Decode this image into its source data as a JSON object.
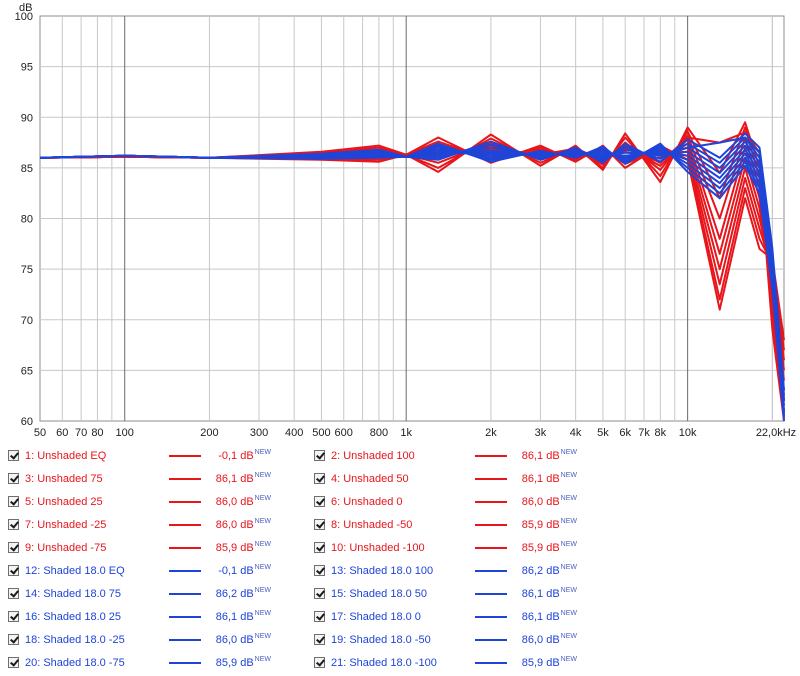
{
  "chart_data": {
    "type": "line",
    "ylabel": "dB",
    "x_unit_label": "22,0kHz",
    "x_scale": "log",
    "xlim": [
      50,
      22000
    ],
    "ylim": [
      60,
      100
    ],
    "y_ticks": [
      60,
      65,
      70,
      75,
      80,
      85,
      90,
      95,
      100
    ],
    "x_ticks": [
      {
        "value": 50,
        "label": "50"
      },
      {
        "value": 60,
        "label": "60"
      },
      {
        "value": 70,
        "label": "70"
      },
      {
        "value": 80,
        "label": "80"
      },
      {
        "value": 100,
        "label": "100"
      },
      {
        "value": 200,
        "label": "200"
      },
      {
        "value": 300,
        "label": "300"
      },
      {
        "value": 400,
        "label": "400"
      },
      {
        "value": 500,
        "label": "500"
      },
      {
        "value": 600,
        "label": "600"
      },
      {
        "value": 800,
        "label": "800"
      },
      {
        "value": 1000,
        "label": "1k"
      },
      {
        "value": 2000,
        "label": "2k"
      },
      {
        "value": 3000,
        "label": "3k"
      },
      {
        "value": 4000,
        "label": "4k"
      },
      {
        "value": 5000,
        "label": "5k"
      },
      {
        "value": 6000,
        "label": "6k"
      },
      {
        "value": 7000,
        "label": "7k"
      },
      {
        "value": 8000,
        "label": "8k"
      },
      {
        "value": 10000,
        "label": "10k"
      }
    ],
    "grid": true,
    "series_colors": {
      "unshaded": "#e8151b",
      "shaded": "#1f44d8"
    },
    "series": [
      {
        "name": "1: Unshaded EQ",
        "value": "-0,1 dB",
        "color": "#e8151b",
        "x": [
          50,
          100,
          200,
          500,
          800,
          1000,
          1300,
          2000,
          3000,
          4000,
          5000,
          6000,
          8000,
          10000,
          13000,
          16000,
          18000,
          20000,
          22000
        ],
        "y": [
          86.0,
          86.1,
          86.0,
          86.2,
          86.4,
          86.2,
          86.5,
          86.8,
          86.3,
          86.9,
          85.8,
          87.2,
          85.5,
          88.0,
          87.5,
          88.5,
          86.5,
          70.0,
          60.5
        ]
      },
      {
        "name": "2: Unshaded 100",
        "value": "86,1 dB",
        "color": "#e8151b",
        "x": [
          50,
          100,
          200,
          500,
          800,
          1000,
          1300,
          2000,
          3000,
          4000,
          5000,
          6000,
          8000,
          10000,
          13000,
          16000,
          18000,
          20000,
          22000
        ],
        "y": [
          86.0,
          86.1,
          86.0,
          85.8,
          85.6,
          86.3,
          84.6,
          88.3,
          85.2,
          87.2,
          84.8,
          88.4,
          83.6,
          89.0,
          84.5,
          89.5,
          85.0,
          69.0,
          60.0
        ]
      },
      {
        "name": "3: Unshaded 75",
        "value": "86,1 dB",
        "color": "#e8151b",
        "x": [
          50,
          100,
          200,
          500,
          800,
          1000,
          1300,
          2000,
          3000,
          4000,
          5000,
          6000,
          8000,
          10000,
          13000,
          16000,
          18000,
          20000,
          22000
        ],
        "y": [
          86.0,
          86.1,
          86.0,
          85.9,
          85.8,
          86.3,
          85.0,
          87.9,
          85.5,
          87.0,
          85.0,
          88.0,
          84.2,
          88.6,
          82.0,
          89.0,
          84.0,
          70.5,
          61.0
        ]
      },
      {
        "name": "4: Unshaded 50",
        "value": "86,1 dB",
        "color": "#e8151b",
        "x": [
          50,
          100,
          200,
          500,
          800,
          1000,
          1300,
          2000,
          3000,
          4000,
          5000,
          6000,
          8000,
          10000,
          13000,
          16000,
          18000,
          20000,
          22000
        ],
        "y": [
          86.0,
          86.1,
          86.0,
          86.0,
          86.0,
          86.3,
          85.5,
          87.5,
          85.8,
          86.8,
          85.3,
          87.5,
          84.8,
          88.2,
          80.0,
          88.0,
          83.0,
          71.5,
          62.0
        ]
      },
      {
        "name": "5: Unshaded 25",
        "value": "86,0 dB",
        "color": "#e8151b",
        "x": [
          50,
          100,
          200,
          500,
          800,
          1000,
          1300,
          2000,
          3000,
          4000,
          5000,
          6000,
          8000,
          10000,
          13000,
          16000,
          18000,
          20000,
          22000
        ],
        "y": [
          86.0,
          86.1,
          86.0,
          86.1,
          86.2,
          86.3,
          86.0,
          87.2,
          86.0,
          86.6,
          85.6,
          87.0,
          85.2,
          87.8,
          78.0,
          87.0,
          82.0,
          72.5,
          63.0
        ]
      },
      {
        "name": "6: Unshaded 0",
        "value": "86,0 dB",
        "color": "#e8151b",
        "x": [
          50,
          100,
          200,
          500,
          800,
          1000,
          1300,
          2000,
          3000,
          4000,
          5000,
          6000,
          8000,
          10000,
          13000,
          16000,
          18000,
          20000,
          22000
        ],
        "y": [
          86.0,
          86.1,
          86.0,
          86.2,
          86.4,
          86.3,
          86.4,
          86.8,
          86.2,
          86.4,
          86.0,
          86.6,
          85.6,
          87.4,
          76.5,
          86.0,
          81.0,
          73.5,
          64.0
        ]
      },
      {
        "name": "7: Unshaded -25",
        "value": "86,0 dB",
        "color": "#e8151b",
        "x": [
          50,
          100,
          200,
          500,
          800,
          1000,
          1300,
          2000,
          3000,
          4000,
          5000,
          6000,
          8000,
          10000,
          13000,
          16000,
          18000,
          20000,
          22000
        ],
        "y": [
          86.0,
          86.1,
          86.0,
          86.3,
          86.6,
          86.3,
          86.8,
          86.5,
          86.5,
          86.2,
          86.3,
          86.2,
          86.0,
          87.0,
          75.0,
          85.0,
          80.0,
          74.5,
          65.0
        ]
      },
      {
        "name": "8: Unshaded -50",
        "value": "85,9 dB",
        "color": "#e8151b",
        "x": [
          50,
          100,
          200,
          500,
          800,
          1000,
          1300,
          2000,
          3000,
          4000,
          5000,
          6000,
          8000,
          10000,
          13000,
          16000,
          18000,
          20000,
          22000
        ],
        "y": [
          86.0,
          86.1,
          86.0,
          86.4,
          86.8,
          86.3,
          87.2,
          86.2,
          86.8,
          86.0,
          86.6,
          85.8,
          86.4,
          86.6,
          73.5,
          84.0,
          79.0,
          75.0,
          66.0
        ]
      },
      {
        "name": "9: Unshaded -75",
        "value": "85,9 dB",
        "color": "#e8151b",
        "x": [
          50,
          100,
          200,
          500,
          800,
          1000,
          1300,
          2000,
          3000,
          4000,
          5000,
          6000,
          8000,
          10000,
          13000,
          16000,
          18000,
          20000,
          22000
        ],
        "y": [
          86.0,
          86.1,
          86.0,
          86.5,
          87.0,
          86.3,
          87.6,
          85.8,
          87.0,
          85.8,
          86.9,
          85.4,
          86.8,
          86.2,
          72.0,
          83.0,
          78.0,
          75.5,
          67.0
        ]
      },
      {
        "name": "10: Unshaded -100",
        "value": "85,9 dB",
        "color": "#e8151b",
        "x": [
          50,
          100,
          200,
          500,
          800,
          1000,
          1300,
          2000,
          3000,
          4000,
          5000,
          6000,
          8000,
          10000,
          13000,
          16000,
          18000,
          20000,
          22000
        ],
        "y": [
          86.0,
          86.1,
          86.0,
          86.6,
          87.2,
          86.3,
          88.0,
          85.5,
          87.2,
          85.6,
          87.2,
          85.0,
          87.2,
          85.8,
          71.0,
          82.0,
          77.0,
          76.0,
          68.0
        ]
      },
      {
        "name": "12: Shaded 18.0 EQ",
        "value": "-0,1 dB",
        "color": "#1f44d8",
        "x": [
          50,
          100,
          200,
          500,
          800,
          1000,
          1300,
          2000,
          3000,
          4000,
          5000,
          6000,
          8000,
          10000,
          13000,
          16000,
          18000,
          20000,
          22000
        ],
        "y": [
          86.0,
          86.2,
          86.0,
          86.1,
          86.3,
          86.1,
          86.4,
          86.5,
          86.2,
          86.6,
          86.0,
          86.8,
          86.2,
          87.0,
          87.5,
          88.0,
          86.5,
          76.0,
          62.0
        ]
      },
      {
        "name": "13: Shaded 18.0 100",
        "value": "86,2 dB",
        "color": "#1f44d8",
        "x": [
          50,
          100,
          200,
          500,
          800,
          1000,
          1300,
          2000,
          3000,
          4000,
          5000,
          6000,
          8000,
          10000,
          13000,
          16000,
          18000,
          20000,
          22000
        ],
        "y": [
          86.0,
          86.2,
          86.0,
          85.9,
          86.0,
          86.1,
          85.8,
          87.6,
          85.8,
          87.0,
          85.5,
          87.4,
          85.6,
          87.8,
          86.0,
          88.4,
          87.0,
          77.0,
          63.0
        ]
      },
      {
        "name": "14: Shaded 18.0 75",
        "value": "86,2 dB",
        "color": "#1f44d8",
        "x": [
          50,
          100,
          200,
          500,
          800,
          1000,
          1300,
          2000,
          3000,
          4000,
          5000,
          6000,
          8000,
          10000,
          13000,
          16000,
          18000,
          20000,
          22000
        ],
        "y": [
          86.0,
          86.2,
          86.0,
          86.0,
          86.1,
          86.1,
          86.0,
          87.3,
          86.0,
          86.8,
          85.7,
          87.1,
          85.9,
          87.4,
          85.5,
          88.0,
          86.0,
          76.5,
          62.5
        ]
      },
      {
        "name": "15: Shaded 18.0 50",
        "value": "86,1 dB",
        "color": "#1f44d8",
        "x": [
          50,
          100,
          200,
          500,
          800,
          1000,
          1300,
          2000,
          3000,
          4000,
          5000,
          6000,
          8000,
          10000,
          13000,
          16000,
          18000,
          20000,
          22000
        ],
        "y": [
          86.0,
          86.2,
          86.0,
          86.1,
          86.2,
          86.1,
          86.2,
          87.0,
          86.1,
          86.6,
          85.9,
          86.8,
          86.2,
          87.0,
          85.0,
          87.6,
          85.5,
          76.0,
          62.0
        ]
      },
      {
        "name": "16: Shaded 18.0 25",
        "value": "86,1 dB",
        "color": "#1f44d8",
        "x": [
          50,
          100,
          200,
          500,
          800,
          1000,
          1300,
          2000,
          3000,
          4000,
          5000,
          6000,
          8000,
          10000,
          13000,
          16000,
          18000,
          20000,
          22000
        ],
        "y": [
          86.0,
          86.2,
          86.0,
          86.1,
          86.3,
          86.1,
          86.4,
          86.7,
          86.2,
          86.5,
          86.1,
          86.5,
          86.4,
          86.6,
          84.5,
          87.2,
          85.0,
          75.5,
          61.5
        ]
      },
      {
        "name": "17: Shaded 18.0 0",
        "value": "86,1 dB",
        "color": "#1f44d8",
        "x": [
          50,
          100,
          200,
          500,
          800,
          1000,
          1300,
          2000,
          3000,
          4000,
          5000,
          6000,
          8000,
          10000,
          13000,
          16000,
          18000,
          20000,
          22000
        ],
        "y": [
          86.0,
          86.2,
          86.0,
          86.2,
          86.4,
          86.1,
          86.6,
          86.4,
          86.3,
          86.4,
          86.3,
          86.2,
          86.6,
          86.2,
          84.0,
          86.8,
          84.5,
          75.0,
          61.0
        ]
      },
      {
        "name": "18: Shaded 18.0 -25",
        "value": "86,0 dB",
        "color": "#1f44d8",
        "x": [
          50,
          100,
          200,
          500,
          800,
          1000,
          1300,
          2000,
          3000,
          4000,
          5000,
          6000,
          8000,
          10000,
          13000,
          16000,
          18000,
          20000,
          22000
        ],
        "y": [
          86.0,
          86.2,
          86.0,
          86.2,
          86.5,
          86.1,
          86.8,
          86.2,
          86.4,
          86.3,
          86.5,
          86.0,
          86.8,
          85.8,
          83.5,
          86.4,
          84.0,
          74.5,
          60.8
        ]
      },
      {
        "name": "19: Shaded 18.0 -50",
        "value": "86,0 dB",
        "color": "#1f44d8",
        "x": [
          50,
          100,
          200,
          500,
          800,
          1000,
          1300,
          2000,
          3000,
          4000,
          5000,
          6000,
          8000,
          10000,
          13000,
          16000,
          18000,
          20000,
          22000
        ],
        "y": [
          86.0,
          86.2,
          86.0,
          86.3,
          86.6,
          86.1,
          87.0,
          86.0,
          86.5,
          86.2,
          86.7,
          85.8,
          87.0,
          85.4,
          83.0,
          86.0,
          83.5,
          74.0,
          60.5
        ]
      },
      {
        "name": "20: Shaded 18.0 -75",
        "value": "85,9 dB",
        "color": "#1f44d8",
        "x": [
          50,
          100,
          200,
          500,
          800,
          1000,
          1300,
          2000,
          3000,
          4000,
          5000,
          6000,
          8000,
          10000,
          13000,
          16000,
          18000,
          20000,
          22000
        ],
        "y": [
          86.0,
          86.2,
          86.0,
          86.3,
          86.7,
          86.1,
          87.2,
          85.8,
          86.6,
          86.1,
          86.9,
          85.6,
          87.2,
          85.0,
          82.5,
          85.6,
          83.0,
          73.5,
          60.3
        ]
      },
      {
        "name": "21: Shaded 18.0 -100",
        "value": "85,9 dB",
        "color": "#1f44d8",
        "x": [
          50,
          100,
          200,
          500,
          800,
          1000,
          1300,
          2000,
          3000,
          4000,
          5000,
          6000,
          8000,
          10000,
          13000,
          16000,
          18000,
          20000,
          22000
        ],
        "y": [
          86.0,
          86.2,
          86.0,
          86.4,
          86.8,
          86.1,
          87.4,
          85.6,
          86.7,
          86.0,
          87.1,
          85.4,
          87.4,
          84.6,
          82.0,
          85.2,
          82.5,
          73.0,
          60.0
        ]
      }
    ]
  },
  "legend": {
    "new_badge": "NEW"
  }
}
